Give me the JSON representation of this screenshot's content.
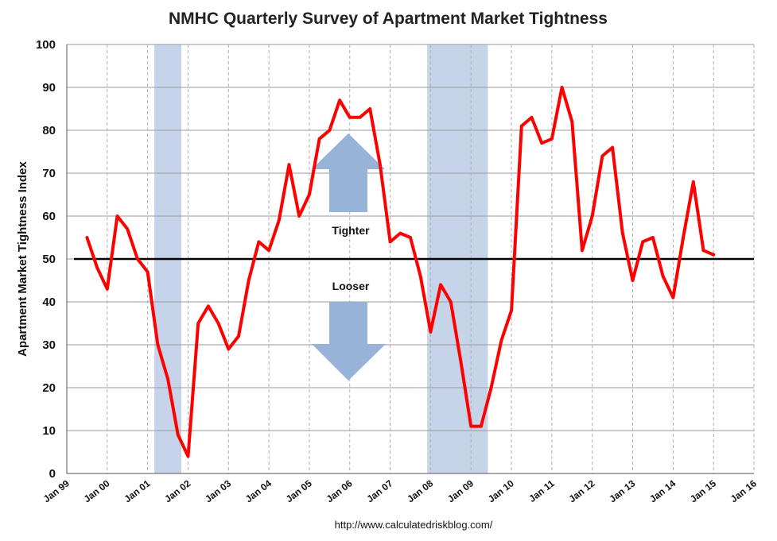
{
  "chart_data": {
    "type": "line",
    "title": "NMHC Quarterly Survey of Apartment Market Tightness",
    "ylabel": "Apartment Market Tightness Index",
    "xlabel": "",
    "source": "http://www.calculatedriskblog.com/",
    "ylim": [
      0,
      100
    ],
    "yticks": [
      "0",
      "10",
      "20",
      "30",
      "40",
      "50",
      "60",
      "70",
      "80",
      "90",
      "100"
    ],
    "xlim": [
      "1999-01",
      "2016-01"
    ],
    "xticks": [
      "Jan 99",
      "Jan 00",
      "Jan 01",
      "Jan 02",
      "Jan 03",
      "Jan 04",
      "Jan 05",
      "Jan 06",
      "Jan 07",
      "Jan 08",
      "Jan 09",
      "Jan 10",
      "Jan 11",
      "Jan 12",
      "Jan 13",
      "Jan 14",
      "Jan 15",
      "Jan 16"
    ],
    "grid": true,
    "reference_line": 50,
    "recessions": [
      {
        "start": "2001-03",
        "end": "2001-11"
      },
      {
        "start": "2007-12",
        "end": "2009-06"
      }
    ],
    "annotations": {
      "up": "Tighter",
      "down": "Looser"
    },
    "colors": {
      "series": "#ff0000",
      "recession": "#c5d4e9",
      "arrow": "#97b3d8",
      "reference": "#000000",
      "grid": "#9a9a9a"
    },
    "series": [
      {
        "x": [
          "1999-07",
          "1999-10",
          "2000-01",
          "2000-04",
          "2000-07",
          "2000-10",
          "2001-01",
          "2001-04",
          "2001-07",
          "2001-10",
          "2002-01",
          "2002-04",
          "2002-07",
          "2002-10",
          "2003-01",
          "2003-04",
          "2003-07",
          "2003-10",
          "2004-01",
          "2004-04",
          "2004-07",
          "2004-10",
          "2005-01",
          "2005-04",
          "2005-07",
          "2005-10",
          "2006-01",
          "2006-04",
          "2006-07",
          "2006-10",
          "2007-01",
          "2007-04",
          "2007-07",
          "2007-10",
          "2008-01",
          "2008-04",
          "2008-07",
          "2008-10",
          "2009-01",
          "2009-04",
          "2009-07",
          "2009-10",
          "2010-01",
          "2010-04",
          "2010-07",
          "2010-10",
          "2011-01",
          "2011-04",
          "2011-07",
          "2011-10",
          "2012-01",
          "2012-04",
          "2012-07",
          "2012-10",
          "2013-01",
          "2013-04",
          "2013-07",
          "2013-10",
          "2014-01",
          "2014-04",
          "2014-07",
          "2014-10",
          "2015-01"
        ],
        "values": [
          55,
          48,
          43,
          60,
          57,
          50,
          47,
          30,
          22,
          9,
          4,
          35,
          39,
          35,
          29,
          32,
          45,
          54,
          52,
          59,
          72,
          60,
          65,
          78,
          80,
          87,
          83,
          83,
          85,
          72,
          54,
          56,
          55,
          46,
          33,
          44,
          40,
          26,
          11,
          11,
          20,
          31,
          38,
          81,
          83,
          77,
          78,
          90,
          82,
          52,
          60,
          74,
          76,
          56,
          45,
          54,
          55,
          46,
          41,
          55,
          68,
          52,
          51
        ]
      }
    ]
  }
}
